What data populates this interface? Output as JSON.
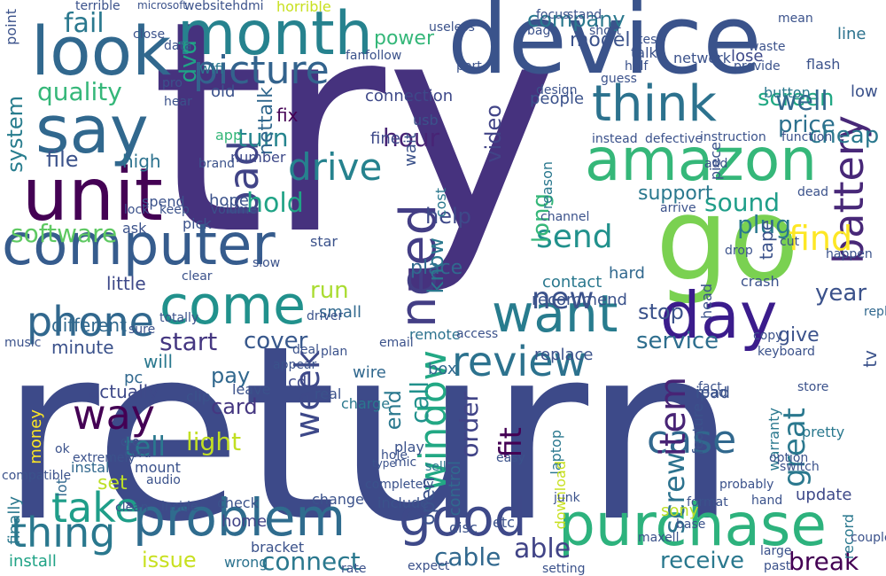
{
  "words": [
    {
      "text": "return",
      "color": "#3d4a89"
    },
    {
      "text": "try",
      "color": "#46327e"
    },
    {
      "text": "device",
      "color": "#3a538b"
    },
    {
      "text": "go",
      "color": "#7ad151"
    },
    {
      "text": "computer",
      "color": "#365c8d"
    },
    {
      "text": "unit",
      "color": "#440154"
    },
    {
      "text": "look",
      "color": "#31688e"
    },
    {
      "text": "say",
      "color": "#31688e"
    },
    {
      "text": "day",
      "color": "#3b1c8c"
    },
    {
      "text": "month",
      "color": "#26828e"
    },
    {
      "text": "want",
      "color": "#287c8e"
    },
    {
      "text": "amazon",
      "color": "#35b779"
    },
    {
      "text": "purchase",
      "color": "#2db27d"
    },
    {
      "text": "problem",
      "color": "#2f6c8e"
    },
    {
      "text": "good",
      "color": "#3e4989"
    },
    {
      "text": "come",
      "color": "#21918c"
    },
    {
      "text": "need",
      "color": "#433e85"
    },
    {
      "text": "battery",
      "color": "#482878"
    },
    {
      "text": "think",
      "color": "#2c728e"
    },
    {
      "text": "picture",
      "color": "#33638d"
    },
    {
      "text": "phone",
      "color": "#31688e"
    },
    {
      "text": "thing",
      "color": "#2a788e"
    },
    {
      "text": "take",
      "color": "#1f9e89"
    },
    {
      "text": "way",
      "color": "#440154"
    },
    {
      "text": "review",
      "color": "#2c728e"
    },
    {
      "text": "window",
      "color": "#22a884"
    },
    {
      "text": "case",
      "color": "#31688e"
    },
    {
      "text": "item",
      "color": "#482475"
    },
    {
      "text": "bad",
      "color": "#414487"
    },
    {
      "text": "drive",
      "color": "#26828e"
    },
    {
      "text": "software",
      "color": "#5ec962"
    },
    {
      "text": "send",
      "color": "#21918c"
    },
    {
      "text": "find",
      "color": "#fde725"
    },
    {
      "text": "week",
      "color": "#3e4989"
    },
    {
      "text": "new",
      "color": "#3b528b"
    },
    {
      "text": "year",
      "color": "#3b528b"
    },
    {
      "text": "hold",
      "color": "#20a386"
    },
    {
      "text": "sound",
      "color": "#1f9e89"
    },
    {
      "text": "plug",
      "color": "#2a788e"
    },
    {
      "text": "service",
      "color": "#2e6e8e"
    },
    {
      "text": "quality",
      "color": "#35b779"
    },
    {
      "text": "system",
      "color": "#287d8e"
    },
    {
      "text": "fail",
      "color": "#2a788e"
    },
    {
      "text": "dvd",
      "color": "#20a386"
    },
    {
      "text": "turn",
      "color": "#25848e"
    },
    {
      "text": "hour",
      "color": "#482475"
    },
    {
      "text": "screen",
      "color": "#22a884"
    },
    {
      "text": "well",
      "color": "#31688e"
    },
    {
      "text": "price",
      "color": "#2d718e"
    },
    {
      "text": "cheap",
      "color": "#2a788e"
    },
    {
      "text": "company",
      "color": "#2a788e"
    },
    {
      "text": "power",
      "color": "#35b779"
    },
    {
      "text": "model",
      "color": "#3b528b"
    },
    {
      "text": "connect",
      "color": "#2a788e"
    },
    {
      "text": "receive",
      "color": "#2a788e"
    },
    {
      "text": "cable",
      "color": "#31688e"
    },
    {
      "text": "able",
      "color": "#414487"
    },
    {
      "text": "break",
      "color": "#440154"
    },
    {
      "text": "issue",
      "color": "#c8e020"
    },
    {
      "text": "install",
      "color": "#20a386"
    },
    {
      "text": "start",
      "color": "#453781"
    },
    {
      "text": "cover",
      "color": "#38588c"
    },
    {
      "text": "tell",
      "color": "#2a788e"
    },
    {
      "text": "fit",
      "color": "#440154"
    },
    {
      "text": "screw",
      "color": "#2c728e"
    },
    {
      "text": "great",
      "color": "#2a788e"
    },
    {
      "text": "pay",
      "color": "#31688e"
    },
    {
      "text": "stop",
      "color": "#3b528b"
    },
    {
      "text": "give",
      "color": "#3b528b"
    },
    {
      "text": "minute",
      "color": "#3b528b"
    },
    {
      "text": "order",
      "color": "#414487"
    },
    {
      "text": "call",
      "color": "#21918c"
    },
    {
      "text": "light",
      "color": "#c2df23"
    },
    {
      "text": "set",
      "color": "#bddf26"
    },
    {
      "text": "end",
      "color": "#2a788e"
    },
    {
      "text": "open",
      "color": "#3b528b"
    },
    {
      "text": "card",
      "color": "#453781"
    },
    {
      "text": "run",
      "color": "#aadc32"
    },
    {
      "text": "help",
      "color": "#3e4989"
    },
    {
      "text": "place",
      "color": "#31688e"
    },
    {
      "text": "know",
      "color": "#2a788e"
    },
    {
      "text": "long",
      "color": "#35b779"
    },
    {
      "text": "support",
      "color": "#2a788e"
    },
    {
      "text": "unit",
      "color": "#440154"
    },
    {
      "text": "video",
      "color": "#414487"
    },
    {
      "text": "actually",
      "color": "#3e4989"
    },
    {
      "text": "different",
      "color": "#31688e"
    },
    {
      "text": "little",
      "color": "#3e4989"
    },
    {
      "text": "file",
      "color": "#3b528b"
    },
    {
      "text": "high",
      "color": "#2c728e"
    },
    {
      "text": "connection",
      "color": "#3e4989"
    },
    {
      "text": "fine",
      "color": "#3e4989"
    },
    {
      "text": "wait",
      "color": "#3b528b"
    },
    {
      "text": "nettalk",
      "color": "#31688e"
    },
    {
      "text": "fix",
      "color": "#440154"
    },
    {
      "text": "old",
      "color": "#3b528b"
    },
    {
      "text": "app",
      "color": "#35b779"
    },
    {
      "text": "wifi",
      "color": "#2a788e"
    },
    {
      "text": "number",
      "color": "#3e4989"
    },
    {
      "text": "tape",
      "color": "#3b528b"
    },
    {
      "text": "lose",
      "color": "#3e4989"
    },
    {
      "text": "line",
      "color": "#2c728e"
    },
    {
      "text": "low",
      "color": "#3b528b"
    },
    {
      "text": "tv",
      "color": "#3b528b"
    },
    {
      "text": "recommend",
      "color": "#3b528b"
    },
    {
      "text": "contact",
      "color": "#2a788e"
    },
    {
      "text": "small",
      "color": "#31688e"
    },
    {
      "text": "box",
      "color": "#31688e"
    },
    {
      "text": "wire",
      "color": "#31688e"
    },
    {
      "text": "sony",
      "color": "#bddf26"
    },
    {
      "text": "ipad",
      "color": "#3b528b"
    },
    {
      "text": "update",
      "color": "#3e4989"
    },
    {
      "text": "record",
      "color": "#2a788e"
    },
    {
      "text": "control",
      "color": "#31688e"
    },
    {
      "text": "laptop",
      "color": "#2a788e"
    },
    {
      "text": "download",
      "color": "#c8e020"
    },
    {
      "text": "remote",
      "color": "#2c728e"
    },
    {
      "text": "charge",
      "color": "#2a788e"
    },
    {
      "text": "cost",
      "color": "#2a788e"
    },
    {
      "text": "finally",
      "color": "#2a788e"
    },
    {
      "text": "money",
      "color": "#fde725"
    },
    {
      "text": "will",
      "color": "#2a788e"
    },
    {
      "text": "pc",
      "color": "#31688e"
    },
    {
      "text": "home",
      "color": "#414487"
    },
    {
      "text": "instal",
      "color": "#31688e"
    },
    {
      "text": "lot",
      "color": "#31688e"
    },
    {
      "text": "cd",
      "color": "#3e4989"
    },
    {
      "text": "etc",
      "color": "#3b528b"
    },
    {
      "text": "disc",
      "color": "#3b528b"
    },
    {
      "text": "hard",
      "color": "#31688e"
    },
    {
      "text": "read",
      "color": "#3b528b"
    },
    {
      "text": "head",
      "color": "#3b528b"
    },
    {
      "text": "bracket",
      "color": "#3b528b"
    },
    {
      "text": "wrong",
      "color": "#2c728e"
    },
    {
      "text": "include",
      "color": "#3b528b"
    },
    {
      "text": "change",
      "color": "#3b528b"
    },
    {
      "text": "completely",
      "color": "#3b528b"
    },
    {
      "text": "sell",
      "color": "#2a788e"
    },
    {
      "text": "feature",
      "color": "#3b528b"
    },
    {
      "text": "warranty",
      "color": "#2a788e"
    },
    {
      "text": "pretty",
      "color": "#2a788e"
    },
    {
      "text": "replacement",
      "color": "#31688e"
    },
    {
      "text": "piece",
      "color": "#3b528b"
    },
    {
      "text": "instruction",
      "color": "#3b528b"
    },
    {
      "text": "function",
      "color": "#3b528b"
    },
    {
      "text": "button",
      "color": "#2a788e"
    },
    {
      "text": "network",
      "color": "#3b528b"
    },
    {
      "text": "flash",
      "color": "#3b528b"
    },
    {
      "text": "talk",
      "color": "#3b528b"
    },
    {
      "text": "hope",
      "color": "#3b528b"
    },
    {
      "text": "pick",
      "color": "#3b528b"
    },
    {
      "text": "star",
      "color": "#3b528b"
    },
    {
      "text": "reason",
      "color": "#2a788e"
    },
    {
      "text": "mount",
      "color": "#3b528b"
    },
    {
      "text": "check",
      "color": "#3b528b"
    },
    {
      "text": "fact",
      "color": "#3b528b"
    },
    {
      "text": "keyboard",
      "color": "#3b528b"
    },
    {
      "text": "copy",
      "color": "#3b528b"
    },
    {
      "text": "point",
      "color": "#3b528b"
    },
    {
      "text": "terrible",
      "color": "#3b528b"
    },
    {
      "text": "horrible",
      "color": "#c8e020"
    },
    {
      "text": "websitehdmi",
      "color": "#3b528b"
    },
    {
      "text": "microsoft",
      "color": "#3b528b"
    },
    {
      "text": "music",
      "color": "#3b528b"
    },
    {
      "text": "email",
      "color": "#3b528b"
    },
    {
      "text": "replace",
      "color": "#3b528b"
    },
    {
      "text": "driver",
      "color": "#3b528b"
    },
    {
      "text": "access",
      "color": "#3b528b"
    },
    {
      "text": "mic",
      "color": "#3b528b"
    },
    {
      "text": "play",
      "color": "#3b528b"
    },
    {
      "text": "hole",
      "color": "#3b528b"
    },
    {
      "text": "type",
      "color": "#3b528b"
    },
    {
      "text": "audio",
      "color": "#3b528b"
    },
    {
      "text": "inside",
      "color": "#3b528b"
    },
    {
      "text": "clean",
      "color": "#3b528b"
    },
    {
      "text": "extremely",
      "color": "#3b528b"
    },
    {
      "text": "compatible",
      "color": "#3b528b"
    },
    {
      "text": "ok",
      "color": "#3b528b"
    },
    {
      "text": "spend",
      "color": "#3b528b"
    },
    {
      "text": "ask",
      "color": "#3b528b"
    },
    {
      "text": "clip",
      "color": "#3b528b"
    },
    {
      "text": "cord",
      "color": "#3b528b"
    },
    {
      "text": "die",
      "color": "#3b528b"
    },
    {
      "text": "leave",
      "color": "#3b528b"
    },
    {
      "text": "real",
      "color": "#3b528b"
    },
    {
      "text": "deal",
      "color": "#3b528b"
    },
    {
      "text": "plan",
      "color": "#3b528b"
    },
    {
      "text": "appear",
      "color": "#3b528b"
    },
    {
      "text": "easy",
      "color": "#3b528b"
    },
    {
      "text": "junk",
      "color": "#3b528b"
    },
    {
      "text": "option",
      "color": "#3b528b"
    },
    {
      "text": "store",
      "color": "#3b528b"
    },
    {
      "text": "switch",
      "color": "#3b528b"
    },
    {
      "text": "probably",
      "color": "#3b528b"
    },
    {
      "text": "format",
      "color": "#3b528b"
    },
    {
      "text": "hand",
      "color": "#3b528b"
    },
    {
      "text": "base",
      "color": "#3b528b"
    },
    {
      "text": "large",
      "color": "#3b528b"
    },
    {
      "text": "past",
      "color": "#3b528b"
    },
    {
      "text": "couple",
      "color": "#3b528b"
    },
    {
      "text": "maxell",
      "color": "#3b528b"
    },
    {
      "text": "expect",
      "color": "#3b528b"
    },
    {
      "text": "setting",
      "color": "#3b528b"
    },
    {
      "text": "rate",
      "color": "#3b528b"
    },
    {
      "text": "instead",
      "color": "#3b528b"
    },
    {
      "text": "defective",
      "color": "#3b528b"
    },
    {
      "text": "crash",
      "color": "#3b528b"
    },
    {
      "text": "drop",
      "color": "#3b528b"
    },
    {
      "text": "cut",
      "color": "#3b528b"
    },
    {
      "text": "happen",
      "color": "#3b528b"
    },
    {
      "text": "mean",
      "color": "#3b528b"
    },
    {
      "text": "arrive",
      "color": "#3b528b"
    },
    {
      "text": "add",
      "color": "#3b528b"
    },
    {
      "text": "channel",
      "color": "#3b528b"
    },
    {
      "text": "dead",
      "color": "#3b528b"
    },
    {
      "text": "provide",
      "color": "#3b528b"
    },
    {
      "text": "waste",
      "color": "#3b528b"
    },
    {
      "text": "design",
      "color": "#3b528b"
    },
    {
      "text": "port",
      "color": "#3b528b"
    },
    {
      "text": "useless",
      "color": "#3b528b"
    },
    {
      "text": "fan",
      "color": "#3b528b"
    },
    {
      "text": "follow",
      "color": "#3b528b"
    },
    {
      "text": "test",
      "color": "#3b528b"
    },
    {
      "text": "short",
      "color": "#3b528b"
    },
    {
      "text": "half",
      "color": "#3b528b"
    },
    {
      "text": "guess",
      "color": "#3b528b"
    },
    {
      "text": "people",
      "color": "#3b528b"
    },
    {
      "text": "usb",
      "color": "#3b528b"
    },
    {
      "text": "close",
      "color": "#3b528b"
    },
    {
      "text": "data",
      "color": "#3b528b"
    },
    {
      "text": "hear",
      "color": "#3b528b"
    },
    {
      "text": "pro",
      "color": "#3b528b"
    },
    {
      "text": "bag",
      "color": "#3b528b"
    },
    {
      "text": "stand",
      "color": "#3b528b"
    },
    {
      "text": "focus",
      "color": "#3b528b"
    },
    {
      "text": "volume",
      "color": "#3b528b"
    },
    {
      "text": "lock",
      "color": "#3b528b"
    },
    {
      "text": "brand",
      "color": "#3b528b"
    },
    {
      "text": "keep",
      "color": "#3b528b"
    },
    {
      "text": "clear",
      "color": "#3b528b"
    },
    {
      "text": "slow",
      "color": "#3b528b"
    },
    {
      "text": "totally",
      "color": "#3b528b"
    },
    {
      "text": "sure",
      "color": "#3b528b"
    }
  ]
}
